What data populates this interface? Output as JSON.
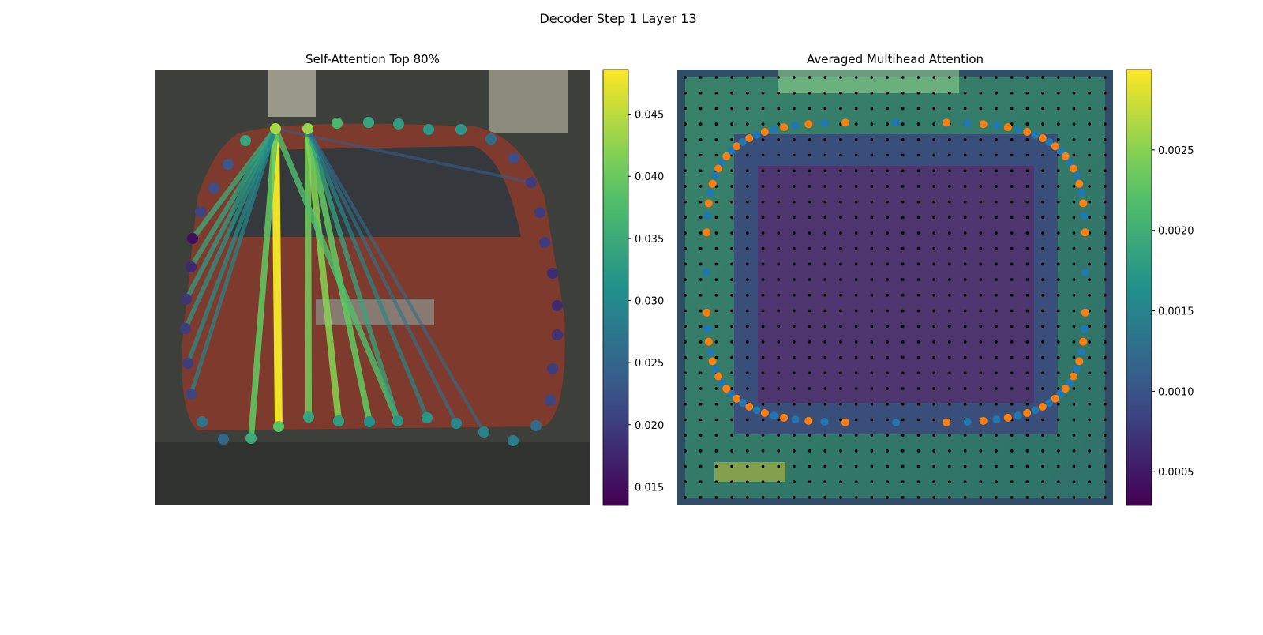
{
  "title": "Decoder Step 1 Layer 13",
  "chart_data": [
    {
      "type": "scatter",
      "title": "Self-Attention Top 80%",
      "colormap": "viridis",
      "values": [
        0.044,
        0.043,
        0.037,
        0.034,
        0.033,
        0.032,
        0.032,
        0.026,
        0.022,
        0.02,
        0.02,
        0.02,
        0.018,
        0.018,
        0.019,
        0.02,
        0.021,
        0.026,
        0.028,
        0.029,
        0.03,
        0.032,
        0.032,
        0.031,
        0.033,
        0.034,
        0.039,
        0.035,
        0.025,
        0.027,
        0.021,
        0.02,
        0.02,
        0.019,
        0.018,
        0.015,
        0.021,
        0.022,
        0.023,
        0.034
      ],
      "edge_values": [
        0.048,
        0.04,
        0.041,
        0.042,
        0.04,
        0.038,
        0.035,
        0.034,
        0.033,
        0.032,
        0.031,
        0.03,
        0.034,
        0.03,
        0.027,
        0.026,
        0.024
      ],
      "clim": [
        0.0135,
        0.0486
      ],
      "cticks": [
        0.015,
        {
          "value": 0.02,
          "label": "0.020"
        },
        0.025,
        {
          "value": 0.03,
          "label": "0.030"
        },
        0.035,
        {
          "value": 0.04,
          "label": "0.040"
        },
        0.045
      ]
    },
    {
      "type": "heatmap",
      "title": "Averaged Multihead Attention",
      "colormap": "viridis",
      "clim": [
        0.00029,
        0.003
      ],
      "cticks": [
        0.0005,
        {
          "value": 0.001,
          "label": "0.0010"
        },
        0.0015,
        {
          "value": 0.002,
          "label": "0.0020"
        },
        0.0025
      ]
    }
  ]
}
